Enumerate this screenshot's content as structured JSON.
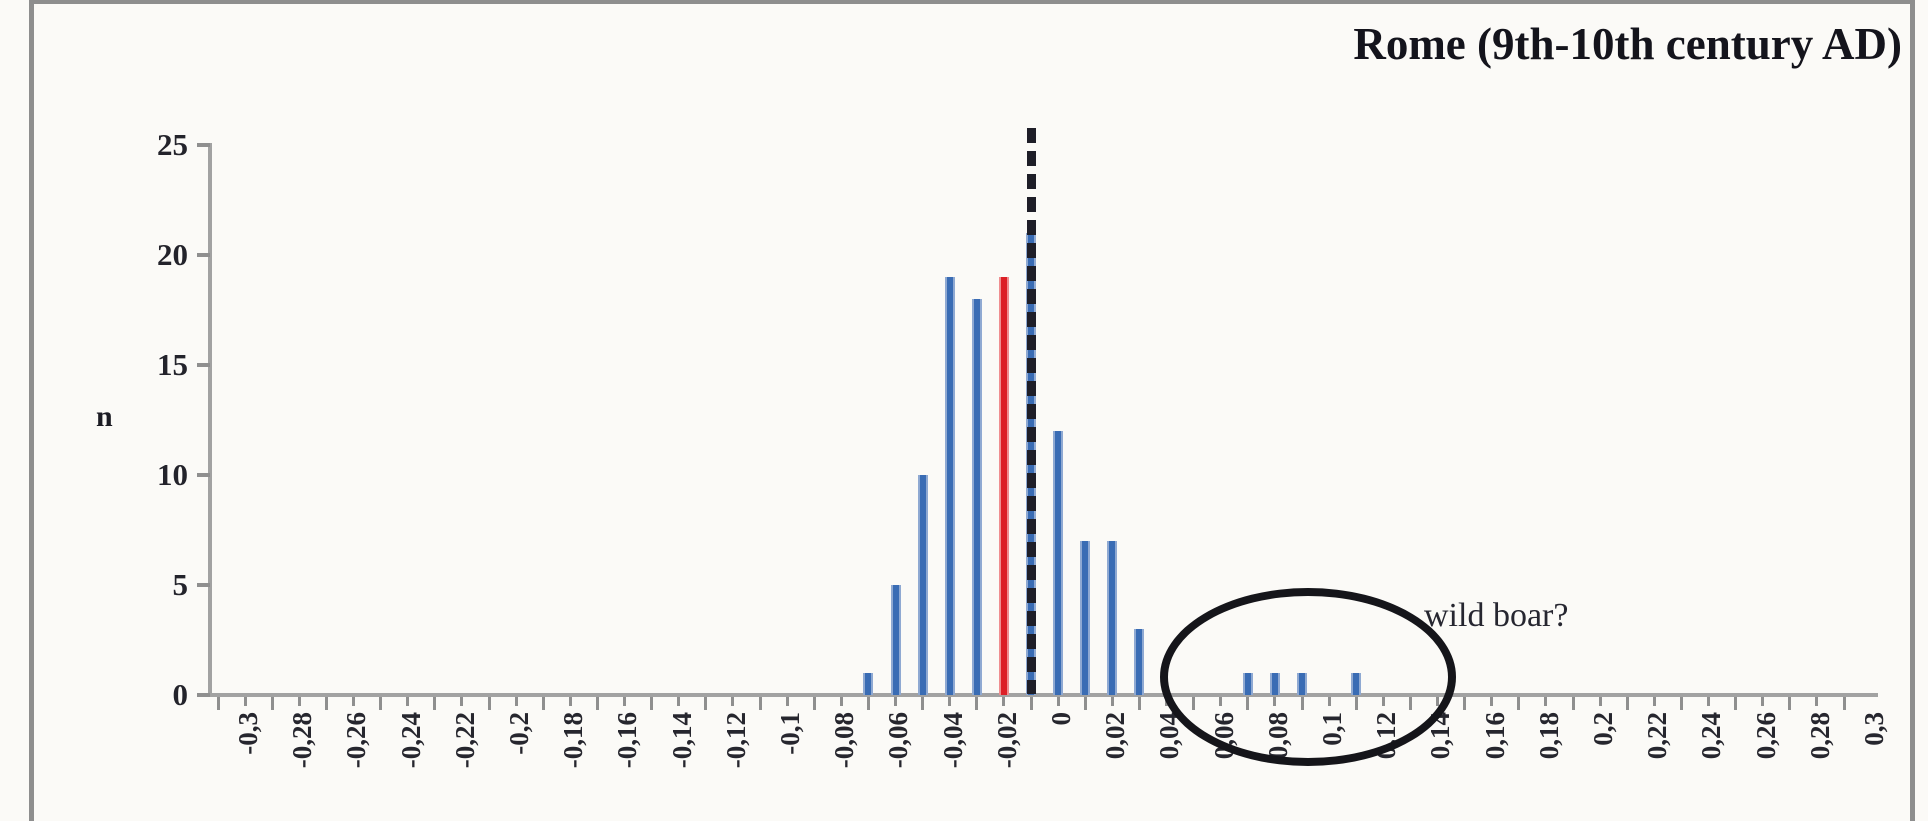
{
  "title": "Rome (9th-10th century AD)",
  "y_axis_title": "n",
  "annotation": {
    "ellipse_label": "wild boar?"
  },
  "colors": {
    "bar_blue": "#3a6cb4",
    "bar_blue_edge": "#8fa9d2",
    "bar_red": "#dc1f26",
    "axis_gray": "#a2a2a2",
    "tick_gray": "#8f8f8f",
    "text_dark": "#23232b",
    "dash_black": "#1e1e28",
    "frame_gray": "#8e8e8e",
    "background": "#fbfaf7"
  },
  "chart_data": {
    "type": "bar",
    "title": "Rome (9th-10th century AD)",
    "xlabel": "",
    "ylabel": "n",
    "xlim": [
      -0.31,
      0.315
    ],
    "ylim": [
      0,
      25
    ],
    "grid": false,
    "y_ticks": [
      0,
      5,
      10,
      15,
      20,
      25
    ],
    "y_tick_labels": [
      "0",
      "5",
      "10",
      "15",
      "20",
      "25"
    ],
    "x_tick_step": 0.01,
    "x_label_step": 0.02,
    "x_tick_labels": [
      "-0,3",
      "-0,28",
      "-0,26",
      "-0,24",
      "-0,22",
      "-0,2",
      "-0,18",
      "-0,16",
      "-0,14",
      "-0,12",
      "-0,1",
      "-0,08",
      "-0,06",
      "-0,04",
      "-0,02",
      "0",
      "0,02",
      "0,04",
      "0,06",
      "0,08",
      "0,1",
      "0,12",
      "0,14",
      "0,16",
      "0,18",
      "0,2",
      "0,22",
      "0,24",
      "0,26",
      "0,28",
      "0,3"
    ],
    "bars": [
      {
        "x": -0.06,
        "n": 1
      },
      {
        "x": -0.05,
        "n": 5
      },
      {
        "x": -0.04,
        "n": 10
      },
      {
        "x": -0.03,
        "n": 19
      },
      {
        "x": -0.02,
        "n": 18
      },
      {
        "x": -0.01,
        "n": 19,
        "highlight": true
      },
      {
        "x": 0.0,
        "n": 21
      },
      {
        "x": 0.01,
        "n": 12
      },
      {
        "x": 0.02,
        "n": 7
      },
      {
        "x": 0.03,
        "n": 7
      },
      {
        "x": 0.04,
        "n": 3
      },
      {
        "x": 0.08,
        "n": 1
      },
      {
        "x": 0.09,
        "n": 1
      },
      {
        "x": 0.1,
        "n": 1
      },
      {
        "x": 0.12,
        "n": 1
      }
    ],
    "dashed_line_x": 0,
    "highlight_bar_x": -0.01,
    "annotations": [
      {
        "type": "ellipse",
        "x_range": [
          0.047,
          0.157
        ],
        "label": "wild boar?"
      }
    ],
    "legend": null
  }
}
